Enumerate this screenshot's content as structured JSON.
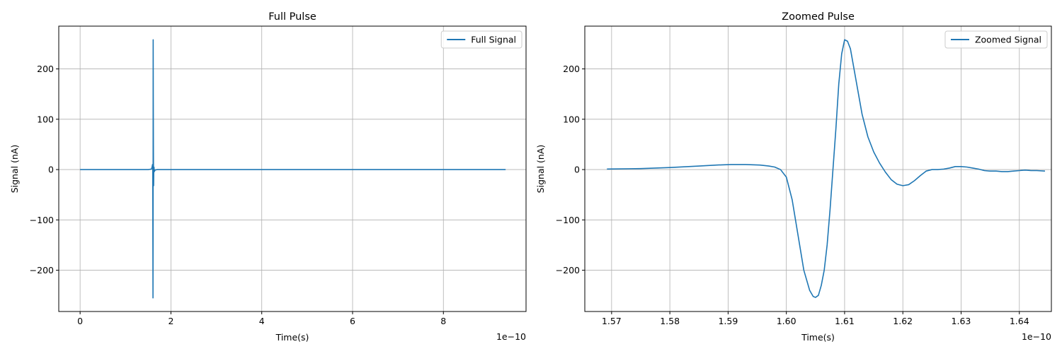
{
  "colors": {
    "line": "#1f77b4",
    "grid": "#b0b0b0",
    "axes": "#000000"
  },
  "chart_data": [
    {
      "type": "line",
      "title": "Full Pulse",
      "xlabel": "Time(s)",
      "ylabel": "Signal (nA)",
      "x_scale_label": "1e−10",
      "x_unit_factor": 1e-10,
      "xlim": [
        -0.47,
        9.82
      ],
      "ylim": [
        -282,
        285
      ],
      "xticks": [
        0,
        2,
        4,
        6,
        8
      ],
      "xtick_labels": [
        "0",
        "2",
        "4",
        "6",
        "8"
      ],
      "yticks": [
        -200,
        -100,
        0,
        100,
        200
      ],
      "ytick_labels": [
        "−200",
        "−100",
        "0",
        "100",
        "200"
      ],
      "grid": true,
      "legend_position": "top-right",
      "series": [
        {
          "name": "Full Signal",
          "x": [
            0,
            1.5,
            1.57,
            1.585,
            1.595,
            1.6,
            1.603,
            1.605,
            1.607,
            1.609,
            1.611,
            1.614,
            1.617,
            1.619,
            1.622,
            1.627,
            1.635,
            1.65,
            1.7,
            3,
            5,
            7,
            9.37
          ],
          "y": [
            0,
            0,
            1,
            5,
            10,
            3,
            -150,
            -255,
            -120,
            258,
            150,
            50,
            -20,
            -32,
            -5,
            5,
            -4,
            -1,
            0,
            0,
            0,
            0,
            0
          ]
        }
      ]
    },
    {
      "type": "line",
      "title": "Zoomed Pulse",
      "xlabel": "Time(s)",
      "ylabel": "Signal (nA)",
      "x_scale_label": "1e−10",
      "x_unit_factor": 1e-10,
      "xlim": [
        1.5654,
        1.6455
      ],
      "ylim": [
        -282,
        285
      ],
      "xticks": [
        1.57,
        1.58,
        1.59,
        1.6,
        1.61,
        1.62,
        1.63,
        1.64
      ],
      "xtick_labels": [
        "1.57",
        "1.58",
        "1.59",
        "1.60",
        "1.61",
        "1.62",
        "1.63",
        "1.64"
      ],
      "yticks": [
        -200,
        -100,
        0,
        100,
        200
      ],
      "ytick_labels": [
        "−200",
        "−100",
        "0",
        "100",
        "200"
      ],
      "grid": true,
      "legend_position": "top-right",
      "series": [
        {
          "name": "Zoomed Signal",
          "x": [
            1.5692,
            1.575,
            1.58,
            1.585,
            1.588,
            1.5905,
            1.593,
            1.5955,
            1.597,
            1.598,
            1.599,
            1.6,
            1.601,
            1.602,
            1.603,
            1.604,
            1.6046,
            1.605,
            1.6055,
            1.606,
            1.6065,
            1.607,
            1.6075,
            1.608,
            1.6085,
            1.609,
            1.6095,
            1.61,
            1.6105,
            1.611,
            1.612,
            1.613,
            1.614,
            1.615,
            1.616,
            1.617,
            1.618,
            1.619,
            1.62,
            1.621,
            1.622,
            1.623,
            1.624,
            1.625,
            1.626,
            1.627,
            1.628,
            1.629,
            1.63,
            1.631,
            1.632,
            1.633,
            1.634,
            1.635,
            1.636,
            1.637,
            1.638,
            1.639,
            1.64,
            1.641,
            1.642,
            1.643,
            1.6444
          ],
          "y": [
            1,
            2,
            4,
            7,
            9,
            10,
            10,
            9,
            7,
            5,
            0,
            -15,
            -60,
            -130,
            -200,
            -240,
            -252,
            -254,
            -250,
            -230,
            -200,
            -150,
            -80,
            0,
            80,
            170,
            230,
            258,
            255,
            240,
            175,
            110,
            65,
            35,
            13,
            -5,
            -20,
            -29,
            -32,
            -30,
            -22,
            -12,
            -3,
            0,
            0,
            1,
            3,
            6,
            6,
            5,
            3,
            1,
            -2,
            -3,
            -3,
            -4,
            -4,
            -3,
            -2,
            -1,
            -2,
            -2,
            -3
          ]
        }
      ]
    }
  ]
}
